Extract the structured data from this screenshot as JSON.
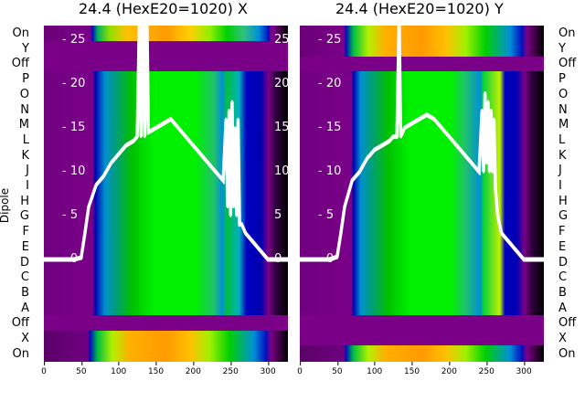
{
  "titles": [
    "24.4 (HexE20=1020) X",
    "24.4 (HexE20=1020) Y"
  ],
  "ylabel": "Dipole",
  "row_labels": [
    "On",
    "Y",
    "Off",
    "P",
    "O",
    "N",
    "M",
    "L",
    "K",
    "J",
    "I",
    "H",
    "G",
    "F",
    "E",
    "D",
    "C",
    "B",
    "A",
    "Off",
    "X",
    "On"
  ],
  "chart_data": {
    "type": "heatmap",
    "overlay": "line",
    "x_ticks": [
      "0",
      "50",
      "100",
      "150",
      "200",
      "250",
      "300"
    ],
    "xlim": [
      0,
      330
    ],
    "overlay_y_ticks": [
      "0",
      "5",
      "10",
      "15",
      "20",
      "25"
    ],
    "overlay_ylim": [
      -4,
      27.5
    ],
    "series": [
      {
        "name": "X",
        "x": [
          0,
          40,
          50,
          55,
          60,
          70,
          80,
          90,
          100,
          110,
          120,
          125,
          128,
          130,
          133,
          135,
          138,
          140,
          150,
          160,
          170,
          180,
          190,
          200,
          210,
          220,
          230,
          240,
          244,
          246,
          248,
          250,
          252,
          254,
          256,
          258,
          260,
          262,
          265,
          270,
          280,
          290,
          300,
          310,
          330
        ],
        "y": [
          0,
          0,
          0.2,
          3,
          6,
          8.5,
          9.5,
          11,
          12,
          13,
          13.5,
          14,
          28,
          14,
          28,
          14,
          28,
          14.5,
          15,
          15.5,
          16,
          15,
          14,
          13,
          12,
          11,
          10,
          9,
          16,
          6,
          17,
          5,
          18,
          6,
          15,
          5,
          16,
          4,
          4,
          3,
          2,
          1,
          0,
          0,
          0
        ]
      },
      {
        "name": "Y",
        "x": [
          0,
          40,
          50,
          55,
          60,
          70,
          80,
          90,
          100,
          110,
          120,
          125,
          130,
          133,
          135,
          138,
          140,
          150,
          160,
          170,
          180,
          190,
          200,
          210,
          220,
          230,
          240,
          244,
          246,
          248,
          250,
          252,
          254,
          256,
          258,
          260,
          262,
          265,
          270,
          280,
          290,
          300,
          310,
          330
        ],
        "y": [
          0,
          0,
          0.3,
          3,
          6,
          9,
          10,
          11.5,
          12.5,
          13,
          13.5,
          14,
          14,
          28,
          14,
          14.5,
          15,
          15.5,
          16,
          16.5,
          16,
          15,
          14,
          13,
          12,
          11,
          10,
          17,
          10,
          19,
          11,
          18,
          10,
          17,
          10,
          16,
          8,
          5,
          3,
          2,
          1,
          0,
          0,
          0
        ]
      }
    ]
  }
}
